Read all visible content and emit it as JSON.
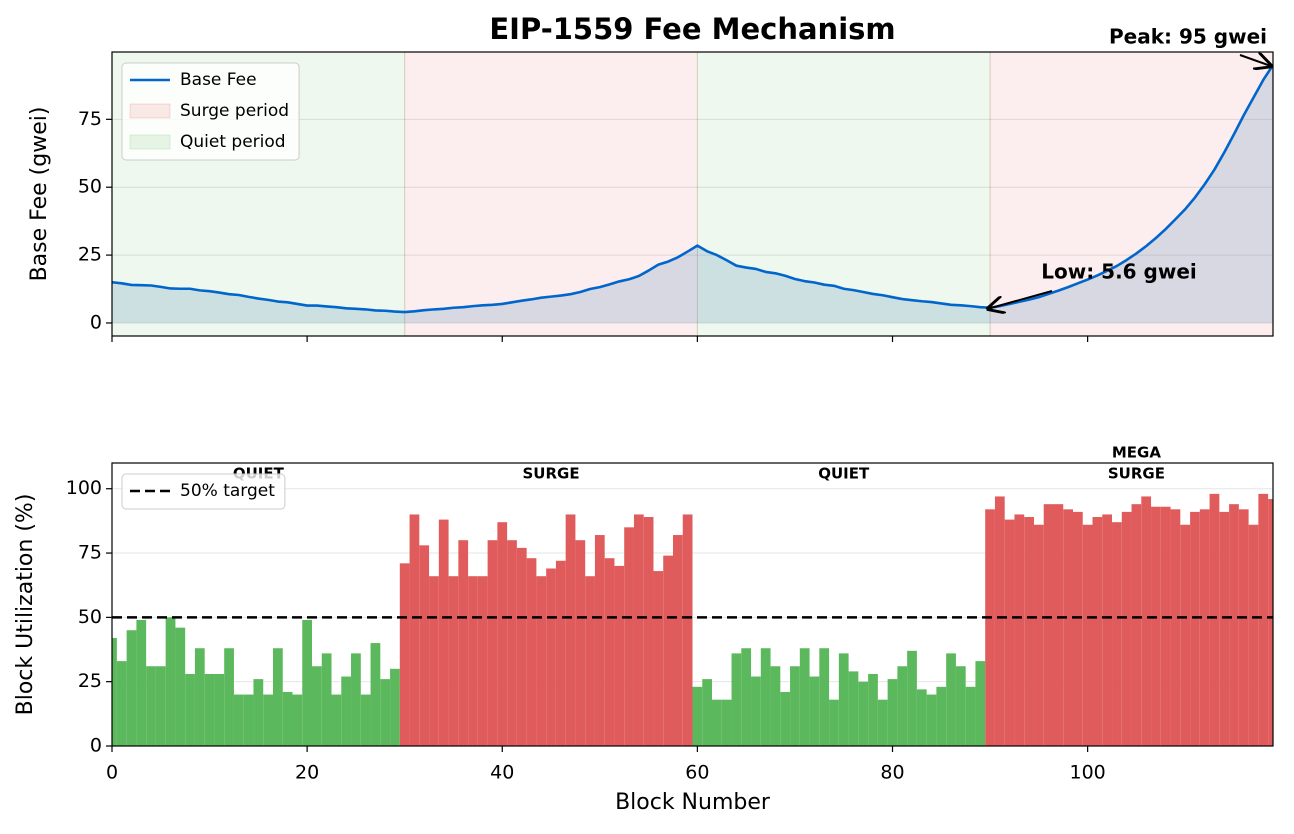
{
  "chart_data": [
    {
      "type": "line",
      "title": "EIP-1559 Fee Mechanism",
      "ylabel": "Base Fee (gwei)",
      "x": [
        0,
        1,
        2,
        3,
        4,
        5,
        6,
        7,
        8,
        9,
        10,
        11,
        12,
        13,
        14,
        15,
        16,
        17,
        18,
        19,
        20,
        21,
        22,
        23,
        24,
        25,
        26,
        27,
        28,
        29,
        30,
        31,
        32,
        33,
        34,
        35,
        36,
        37,
        38,
        39,
        40,
        41,
        42,
        43,
        44,
        45,
        46,
        47,
        48,
        49,
        50,
        51,
        52,
        53,
        54,
        55,
        56,
        57,
        58,
        59,
        60,
        61,
        62,
        63,
        64,
        65,
        66,
        67,
        68,
        69,
        70,
        71,
        72,
        73,
        74,
        75,
        76,
        77,
        78,
        79,
        80,
        81,
        82,
        83,
        84,
        85,
        86,
        87,
        88,
        89,
        90,
        91,
        92,
        93,
        94,
        95,
        96,
        97,
        98,
        99,
        100,
        101,
        102,
        103,
        104,
        105,
        106,
        107,
        108,
        109,
        110,
        111,
        112,
        113,
        114,
        115,
        116,
        117,
        118,
        119
      ],
      "series": [
        {
          "name": "Base Fee",
          "color": "#0066cc",
          "fill_color": "#4682b4",
          "values": [
            15.0,
            14.6,
            14.0,
            13.9,
            13.8,
            13.3,
            12.7,
            12.6,
            12.6,
            12.0,
            11.7,
            11.2,
            10.6,
            10.3,
            9.6,
            9.0,
            8.5,
            7.9,
            7.6,
            7.0,
            6.4,
            6.4,
            6.1,
            5.8,
            5.4,
            5.2,
            5.0,
            4.6,
            4.5,
            4.2,
            4.0,
            4.3,
            4.7,
            5.0,
            5.2,
            5.6,
            5.8,
            6.2,
            6.5,
            6.7,
            7.0,
            7.6,
            8.2,
            8.7,
            9.3,
            9.7,
            10.1,
            10.6,
            11.4,
            12.5,
            13.2,
            14.2,
            15.3,
            16.1,
            17.3,
            19.3,
            21.5,
            22.6,
            24.2,
            26.3,
            28.5,
            26.4,
            25.0,
            23.1,
            21.1,
            20.4,
            19.9,
            18.8,
            18.3,
            17.4,
            16.2,
            15.4,
            14.9,
            14.1,
            13.7,
            12.6,
            12.1,
            11.4,
            10.7,
            10.2,
            9.5,
            8.8,
            8.4,
            8.0,
            7.7,
            7.2,
            6.7,
            6.5,
            6.2,
            5.8,
            5.6,
            6.2,
            7.0,
            7.8,
            8.6,
            9.5,
            10.7,
            11.9,
            13.2,
            14.6,
            16.0,
            17.5,
            19.2,
            21.0,
            23.2,
            25.6,
            28.3,
            31.3,
            34.6,
            38.2,
            41.9,
            46.2,
            51.1,
            56.5,
            62.8,
            69.5,
            76.5,
            83.0,
            89.5,
            95.0
          ]
        }
      ],
      "spans": [
        {
          "name": "Surge period",
          "color": "#d62728",
          "ranges": [
            [
              30,
              60
            ],
            [
              90,
              120
            ]
          ]
        },
        {
          "name": "Quiet period",
          "color": "#2ca02c",
          "ranges": [
            [
              0,
              30
            ],
            [
              60,
              90
            ]
          ]
        }
      ],
      "annotations": [
        {
          "text": "Peak: 95 gwei",
          "x": 119,
          "y": 95,
          "color": "#d62728"
        },
        {
          "text": "Low: 5.6 gwei",
          "x": 90,
          "y": 5.6,
          "color": "#2ca02c"
        }
      ],
      "xlim": [
        0,
        119
      ],
      "ylim": [
        -4.8,
        99.8
      ],
      "xticks": [
        0,
        20,
        40,
        60,
        80,
        100
      ],
      "yticks": [
        0,
        25,
        50,
        75
      ],
      "show_xtick_labels": false,
      "grid": true,
      "legend": "upper left"
    },
    {
      "type": "bar",
      "xlabel": "Block Number",
      "ylabel": "Block Utilization (%)",
      "x": [
        0,
        1,
        2,
        3,
        4,
        5,
        6,
        7,
        8,
        9,
        10,
        11,
        12,
        13,
        14,
        15,
        16,
        17,
        18,
        19,
        20,
        21,
        22,
        23,
        24,
        25,
        26,
        27,
        28,
        29,
        30,
        31,
        32,
        33,
        34,
        35,
        36,
        37,
        38,
        39,
        40,
        41,
        42,
        43,
        44,
        45,
        46,
        47,
        48,
        49,
        50,
        51,
        52,
        53,
        54,
        55,
        56,
        57,
        58,
        59,
        60,
        61,
        62,
        63,
        64,
        65,
        66,
        67,
        68,
        69,
        70,
        71,
        72,
        73,
        74,
        75,
        76,
        77,
        78,
        79,
        80,
        81,
        82,
        83,
        84,
        85,
        86,
        87,
        88,
        89,
        90,
        91,
        92,
        93,
        94,
        95,
        96,
        97,
        98,
        99,
        100,
        101,
        102,
        103,
        104,
        105,
        106,
        107,
        108,
        109,
        110,
        111,
        112,
        113,
        114,
        115,
        116,
        117,
        118,
        119
      ],
      "values": [
        42,
        33,
        45,
        49,
        31,
        31,
        50,
        46,
        28,
        38,
        28,
        28,
        38,
        20,
        20,
        26,
        20,
        38,
        21,
        20,
        49,
        31,
        36,
        20,
        27,
        36,
        20,
        40,
        26,
        30,
        71,
        90,
        78,
        66,
        88,
        66,
        80,
        66,
        66,
        80,
        87,
        80,
        77,
        73,
        66,
        69,
        72,
        90,
        80,
        66,
        82,
        73,
        70,
        85,
        90,
        89,
        68,
        74,
        82,
        90,
        23,
        26,
        18,
        18,
        36,
        38,
        27,
        38,
        31,
        21,
        31,
        38,
        27,
        38,
        18,
        36,
        29,
        25,
        28,
        18,
        26,
        31,
        37,
        22,
        20,
        23,
        36,
        31,
        23,
        33,
        92,
        97,
        88,
        90,
        89,
        86,
        94,
        94,
        92,
        91,
        86,
        89,
        90,
        87,
        91,
        94,
        97,
        93,
        93,
        92,
        86,
        91,
        92,
        98,
        91,
        94,
        92,
        86,
        98,
        96
      ],
      "regions": [
        {
          "label": [
            "QUIET"
          ],
          "start": 0,
          "end": 30,
          "color": "#5cb85c",
          "label_color": "#2ca02c"
        },
        {
          "label": [
            "SURGE"
          ],
          "start": 30,
          "end": 60,
          "color": "#e05c5c",
          "label_color": "#d62728"
        },
        {
          "label": [
            "QUIET"
          ],
          "start": 60,
          "end": 90,
          "color": "#5cb85c",
          "label_color": "#2ca02c"
        },
        {
          "label": [
            "MEGA",
            "SURGE"
          ],
          "start": 90,
          "end": 120,
          "color": "#e05c5c",
          "label_color": "#d62728"
        }
      ],
      "reference_lines": [
        {
          "name": "50% target",
          "value": 50,
          "color": "#000000",
          "style": "dashed"
        }
      ],
      "xlim": [
        0,
        119
      ],
      "ylim": [
        0,
        110
      ],
      "xticks": [
        0,
        20,
        40,
        60,
        80,
        100
      ],
      "yticks": [
        0,
        25,
        50,
        75,
        100
      ],
      "show_xtick_labels": true,
      "grid": true,
      "legend": "upper left"
    }
  ]
}
